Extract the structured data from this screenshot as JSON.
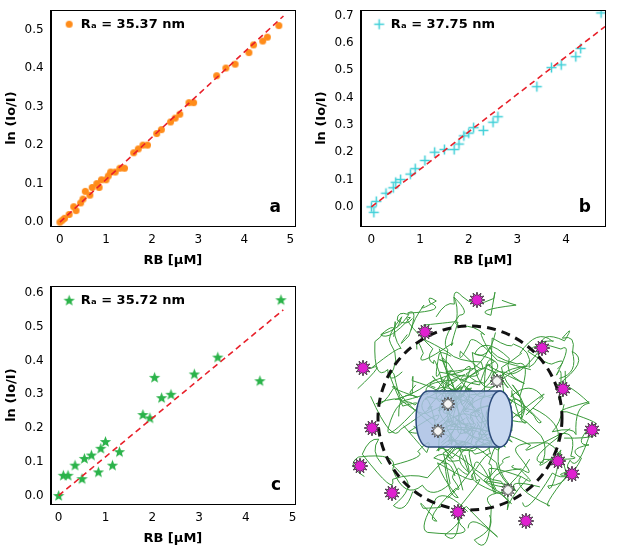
{
  "chart_data": [
    {
      "type": "scatter",
      "panel_label": "a",
      "x_label": "RB [μM]",
      "y_label": "ln (Io/I)",
      "xlim": [
        -0.2,
        5.1
      ],
      "xticks": [
        0,
        1,
        2,
        3,
        4,
        5
      ],
      "ylim": [
        -0.01,
        0.55
      ],
      "yticks": [
        {
          "value": 0,
          "label": "0.0"
        },
        0.1,
        0.2,
        0.3,
        0.4,
        0.5
      ],
      "grid": false,
      "legend": "upper left",
      "series": [
        {
          "name": "Rₐ = 35.37 nm",
          "color": "#ff8c1a",
          "marker": "circle",
          "x": [
            0,
            0.05,
            0.1,
            0.2,
            0.3,
            0.35,
            0.45,
            0.5,
            0.55,
            0.65,
            0.7,
            0.8,
            0.85,
            0.9,
            1.0,
            1.05,
            1.1,
            1.2,
            1.3,
            1.4,
            1.6,
            1.7,
            1.8,
            1.9,
            2.1,
            2.2,
            2.4,
            2.5,
            2.6,
            2.8,
            2.9,
            3.4,
            3.6,
            3.8,
            4.1,
            4.2,
            4.4,
            4.5,
            4.75
          ],
          "values": [
            0,
            0.005,
            0.01,
            0.02,
            0.04,
            0.03,
            0.05,
            0.06,
            0.08,
            0.07,
            0.09,
            0.1,
            0.09,
            0.11,
            0.11,
            0.12,
            0.13,
            0.13,
            0.14,
            0.14,
            0.18,
            0.19,
            0.2,
            0.2,
            0.23,
            0.24,
            0.26,
            0.27,
            0.28,
            0.31,
            0.31,
            0.38,
            0.4,
            0.41,
            0.44,
            0.46,
            0.47,
            0.48,
            0.51
          ]
        },
        {
          "type": "line",
          "color": "#e8202a",
          "line_style": "dashed",
          "x": [
            0,
            4.85
          ],
          "values": [
            0,
            0.535
          ]
        }
      ]
    },
    {
      "type": "scatter",
      "panel_label": "b",
      "x_label": "RB [μM]",
      "y_label": "ln (Io/I)",
      "xlim": [
        -0.22,
        4.8
      ],
      "xticks": [
        0,
        1,
        2,
        3,
        4
      ],
      "ylim": [
        -0.07,
        0.72
      ],
      "yticks": [
        {
          "value": 0,
          "label": "0.0"
        },
        0.1,
        0.2,
        0.3,
        0.4,
        0.5,
        0.6,
        0.7
      ],
      "grid": false,
      "legend": "upper left",
      "series": [
        {
          "name": "Rₐ = 37.75 nm",
          "color": "#40d0d8",
          "marker": "cross",
          "x": [
            0,
            0.05,
            0.1,
            0.3,
            0.45,
            0.5,
            0.6,
            0.8,
            0.9,
            1.1,
            1.3,
            1.5,
            1.7,
            1.8,
            1.9,
            2.0,
            2.1,
            2.3,
            2.5,
            2.6,
            3.4,
            3.7,
            3.9,
            4.2,
            4.3,
            4.72
          ],
          "values": [
            0,
            -0.02,
            0.02,
            0.05,
            0.07,
            0.09,
            0.1,
            0.12,
            0.14,
            0.17,
            0.2,
            0.21,
            0.21,
            0.23,
            0.26,
            0.27,
            0.29,
            0.28,
            0.31,
            0.33,
            0.44,
            0.51,
            0.52,
            0.55,
            0.58,
            0.71
          ]
        },
        {
          "type": "line",
          "color": "#e8202a",
          "line_style": "dashed",
          "x": [
            0,
            4.8
          ],
          "values": [
            0,
            0.66
          ]
        }
      ]
    },
    {
      "type": "scatter",
      "panel_label": "c",
      "x_label": "RB [μM]",
      "y_label": "ln (Io/I)",
      "xlim": [
        -0.17,
        5.05
      ],
      "xticks": [
        0,
        1,
        2,
        3,
        4,
        5
      ],
      "ylim": [
        -0.025,
        0.62
      ],
      "yticks": [
        {
          "value": 0,
          "label": "0.0"
        },
        0.1,
        0.2,
        0.3,
        0.4,
        0.5,
        0.6
      ],
      "grid": false,
      "legend": "upper left",
      "series": [
        {
          "name": "Rₐ = 35.72 nm",
          "color": "#2bb34a",
          "marker": "star",
          "x": [
            0,
            0.1,
            0.2,
            0.35,
            0.5,
            0.55,
            0.7,
            0.85,
            0.9,
            1.0,
            1.15,
            1.3,
            1.8,
            1.95,
            2.05,
            2.2,
            2.4,
            2.9,
            3.4,
            4.3,
            4.75
          ],
          "values": [
            0,
            0.06,
            0.06,
            0.09,
            0.05,
            0.11,
            0.12,
            0.07,
            0.14,
            0.16,
            0.09,
            0.13,
            0.24,
            0.23,
            0.35,
            0.29,
            0.3,
            0.36,
            0.41,
            0.34,
            0.58
          ]
        },
        {
          "type": "line",
          "color": "#e8202a",
          "line_style": "dashed",
          "x": [
            0,
            4.8
          ],
          "values": [
            0,
            0.55
          ]
        }
      ]
    }
  ]
}
